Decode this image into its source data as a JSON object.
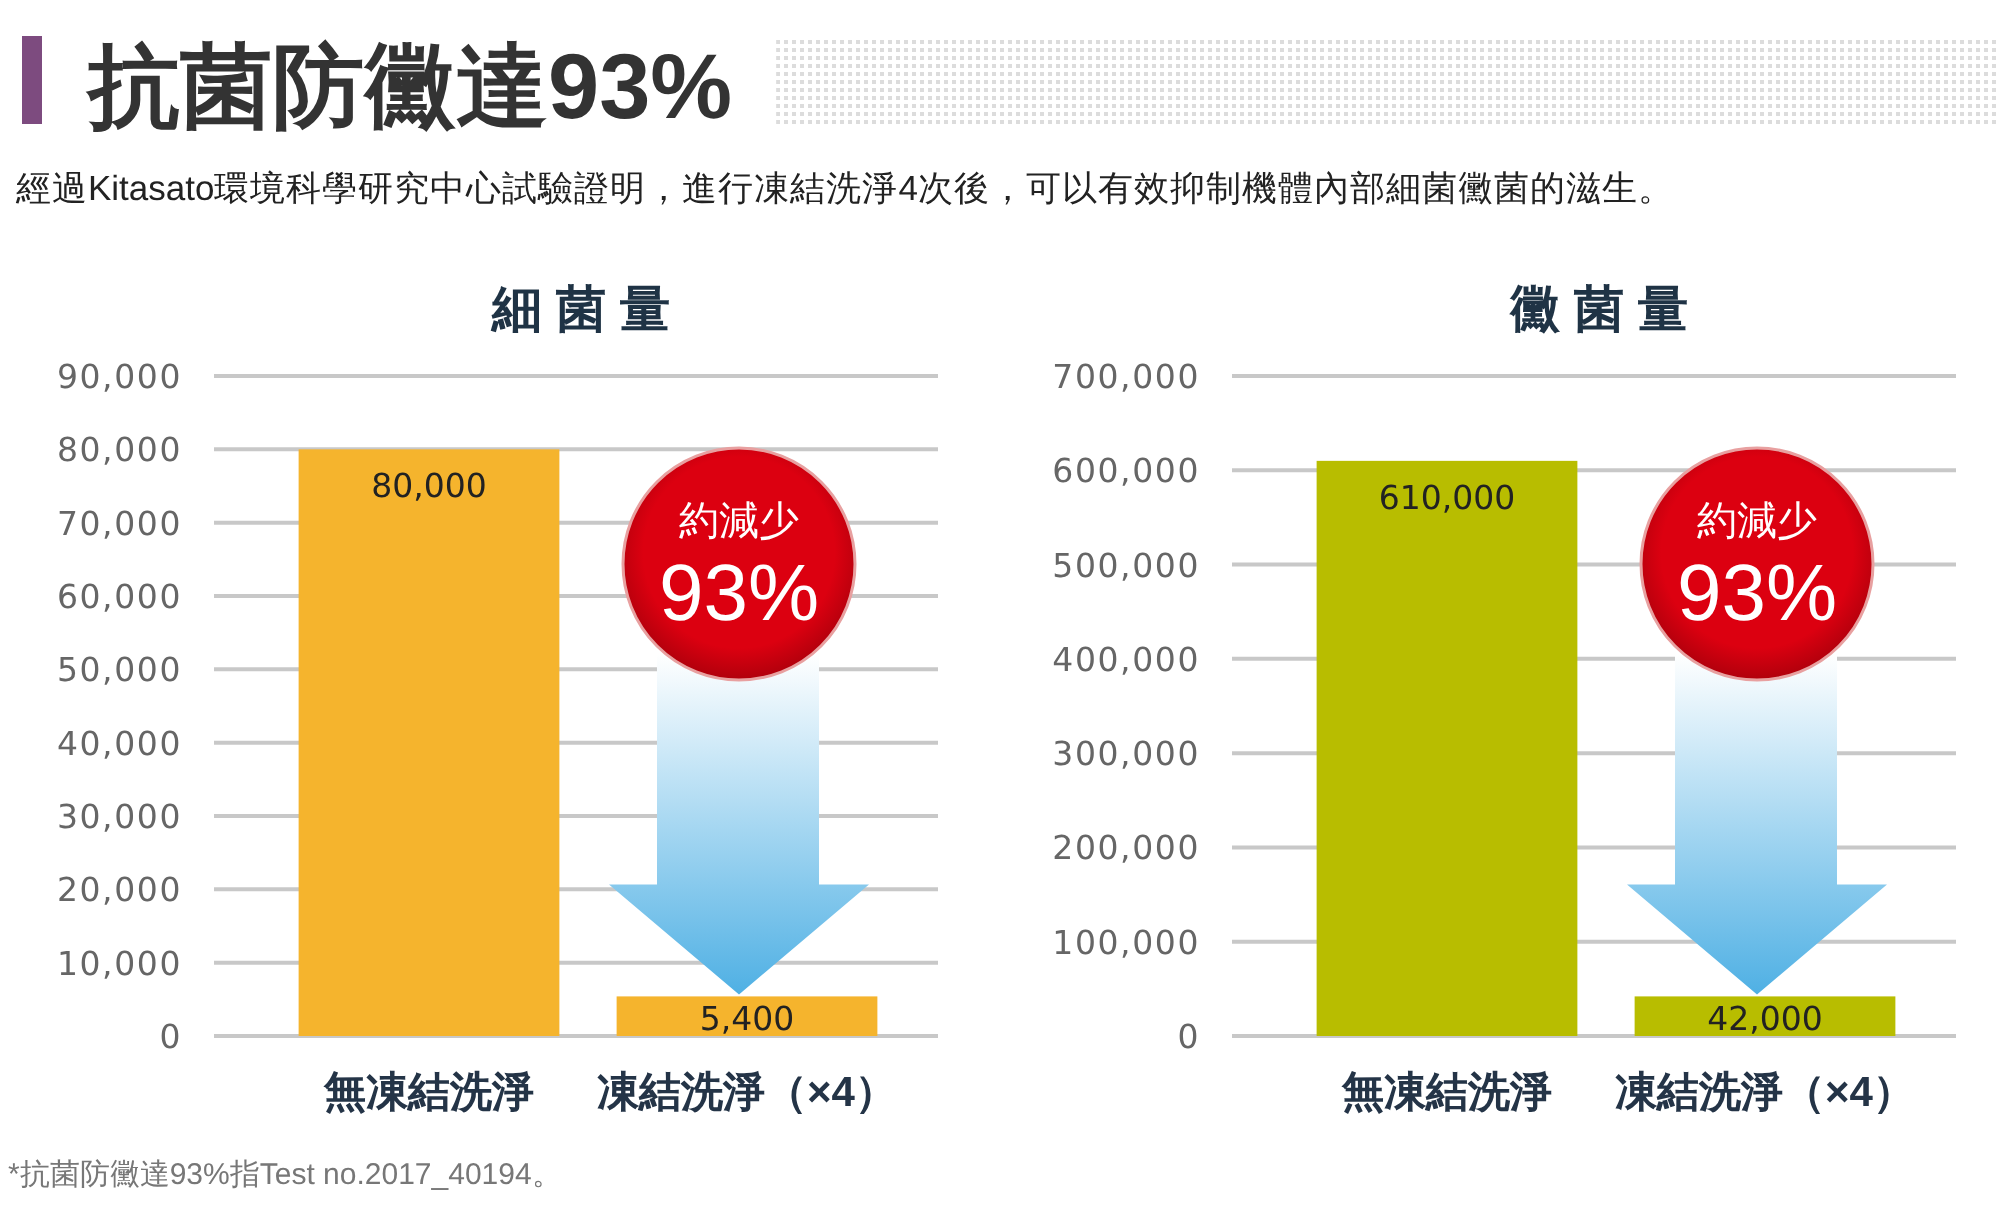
{
  "chart_data": [
    {
      "type": "other",
      "title": "抗菌防黴達93%",
      "subtitle": "經過Kitasato環境科學研究中心試驗證明，進行凍結洗淨4次後，可以有效抑制機體內部細菌黴菌的滋生。",
      "annotations": [
        "*抗菌防黴達93%指Test no.2017_40194。"
      ]
    },
    {
      "type": "bar",
      "title": "細菌量",
      "categories": [
        "無凍結洗淨",
        "凍結洗淨（×4）"
      ],
      "values": [
        80000,
        5400
      ],
      "value_labels": [
        "80,000",
        "5,400"
      ],
      "color": "#f5b42d",
      "ylim": [
        0,
        90000
      ],
      "yticks": [
        0,
        {
          "value": 10000,
          "label": "10,000"
        },
        {
          "value": 20000,
          "label": "20,000"
        },
        {
          "value": 30000,
          "label": "30,000"
        },
        {
          "value": 40000,
          "label": "40,000"
        },
        {
          "value": 50000,
          "label": "50,000"
        },
        {
          "value": 60000,
          "label": "60,000"
        },
        {
          "value": 70000,
          "label": "70,000"
        },
        {
          "value": 80000,
          "label": "80,000"
        },
        {
          "value": 90000,
          "label": "90,000"
        }
      ],
      "grid": "y",
      "annotations": [
        "約減少",
        "93%"
      ]
    },
    {
      "type": "bar",
      "title": "黴菌量",
      "categories": [
        "無凍結洗淨",
        "凍結洗淨（×4）"
      ],
      "values": [
        610000,
        42000
      ],
      "value_labels": [
        "610,000",
        "42,000"
      ],
      "color": "#b8bd00",
      "ylim": [
        0,
        700000
      ],
      "yticks": [
        0,
        {
          "value": 100000,
          "label": "100,000"
        },
        {
          "value": 200000,
          "label": "200,000"
        },
        {
          "value": 300000,
          "label": "300,000"
        },
        {
          "value": 400000,
          "label": "400,000"
        },
        {
          "value": 500000,
          "label": "500,000"
        },
        {
          "value": 600000,
          "label": "600,000"
        },
        {
          "value": 700000,
          "label": "700,000"
        }
      ],
      "grid": "y",
      "annotations": [
        "約減少",
        "93%"
      ]
    }
  ]
}
